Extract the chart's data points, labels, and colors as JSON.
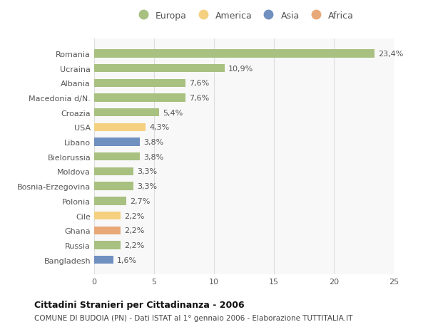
{
  "categories": [
    "Romania",
    "Ucraina",
    "Albania",
    "Macedonia d/N.",
    "Croazia",
    "USA",
    "Libano",
    "Bielorussia",
    "Moldova",
    "Bosnia-Erzegovina",
    "Polonia",
    "Cile",
    "Ghana",
    "Russia",
    "Bangladesh"
  ],
  "values": [
    23.4,
    10.9,
    7.6,
    7.6,
    5.4,
    4.3,
    3.8,
    3.8,
    3.3,
    3.3,
    2.7,
    2.2,
    2.2,
    2.2,
    1.6
  ],
  "labels": [
    "23,4%",
    "10,9%",
    "7,6%",
    "7,6%",
    "5,4%",
    "4,3%",
    "3,8%",
    "3,8%",
    "3,3%",
    "3,3%",
    "2,7%",
    "2,2%",
    "2,2%",
    "2,2%",
    "1,6%"
  ],
  "continent": [
    "Europa",
    "Europa",
    "Europa",
    "Europa",
    "Europa",
    "America",
    "Asia",
    "Europa",
    "Europa",
    "Europa",
    "Europa",
    "America",
    "Africa",
    "Europa",
    "Asia"
  ],
  "colors": {
    "Europa": "#A8C080",
    "America": "#F5D080",
    "Asia": "#7090C0",
    "Africa": "#E8A878"
  },
  "legend_labels": [
    "Europa",
    "America",
    "Asia",
    "Africa"
  ],
  "xlim": [
    0,
    25
  ],
  "xticks": [
    0,
    5,
    10,
    15,
    20,
    25
  ],
  "title": "Cittadini Stranieri per Cittadinanza - 2006",
  "subtitle": "COMUNE DI BUDOIA (PN) - Dati ISTAT al 1° gennaio 2006 - Elaborazione TUTTITALIA.IT",
  "bg_color": "#FFFFFF",
  "plot_bg_color": "#F8F8F8",
  "bar_height": 0.55,
  "grid_color": "#DDDDDD",
  "label_fontsize": 8,
  "tick_fontsize": 8,
  "label_color": "#555555",
  "tick_color": "#555555"
}
